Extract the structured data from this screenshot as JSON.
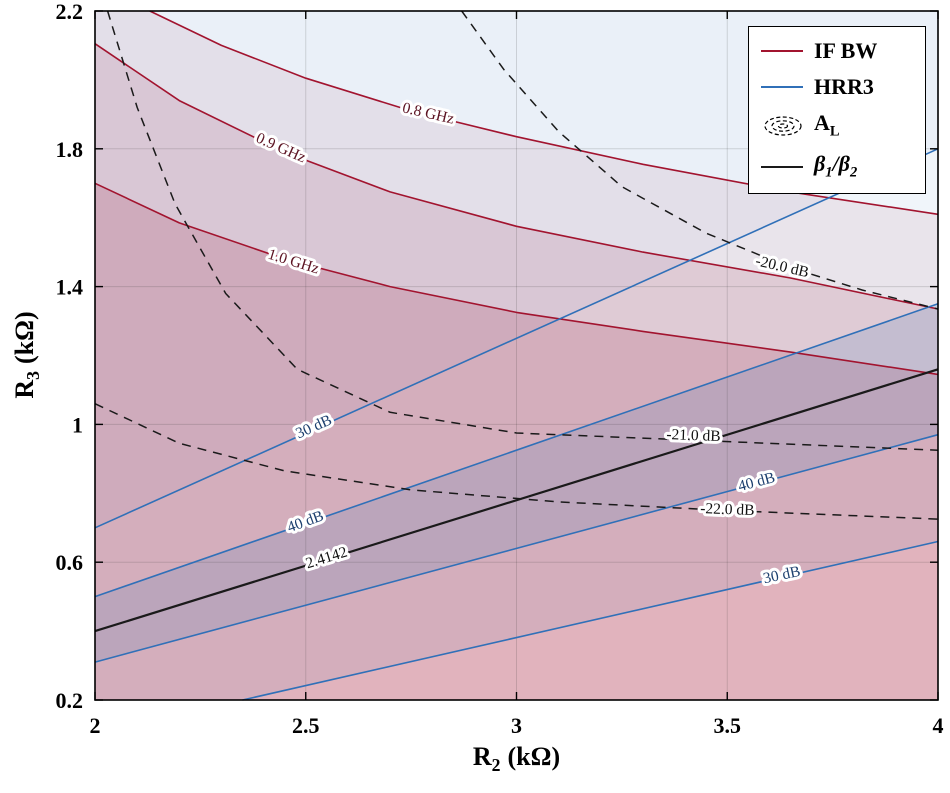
{
  "figure": {
    "background": "#ffffff",
    "xlabel": {
      "main": "R",
      "sub": "2",
      "unit": "(kΩ)"
    },
    "ylabel": {
      "main": "R",
      "sub": "3",
      "unit": "(kΩ)"
    }
  },
  "legend": {
    "items": [
      {
        "label": "IF BW"
      },
      {
        "label": "HRR3"
      },
      {
        "main": "A",
        "sub": "L"
      },
      {
        "beta1": "β",
        "sub1": "1",
        "slash": "/",
        "beta2": "β",
        "sub2": "2"
      }
    ]
  },
  "chart_data": {
    "type": "contour",
    "title": "",
    "xlabel": "R2 (kOhm)",
    "ylabel": "R3 (kOhm)",
    "xlim": [
      2,
      4
    ],
    "ylim": [
      0.2,
      2.2
    ],
    "xtick_values": [
      2,
      2.5,
      3,
      3.5,
      4
    ],
    "xtick_labels": [
      "2",
      "2.5",
      "3",
      "3.5",
      "4"
    ],
    "ytick_values": [
      0.2,
      0.6,
      1.0,
      1.4,
      1.8,
      2.2
    ],
    "ytick_labels": [
      "0.2",
      "0.6",
      "1",
      "1.4",
      "1.8",
      "2.2"
    ],
    "grid": true,
    "legend_position": "top-right",
    "colors": {
      "ifbw": "#A2142F",
      "hrr3": "#3070B8",
      "al": "#1a1a1a",
      "beta": "#1a1a1a",
      "grid_line": "rgba(38,38,38,0.16)",
      "axis": "#000000",
      "label_ifbw": "#5c1322",
      "label_hrr3": "#1c3f6e",
      "label_black": "#111111"
    },
    "fills": [
      {
        "name": "below-0.8GHz",
        "color": "#A2142F",
        "alpha": 0.08,
        "points": [
          [
            2.13,
            2.2
          ],
          [
            2.3,
            2.1
          ],
          [
            2.5,
            2.005
          ],
          [
            2.75,
            1.91
          ],
          [
            3.0,
            1.835
          ],
          [
            3.3,
            1.755
          ],
          [
            3.65,
            1.675
          ],
          [
            4.0,
            1.61
          ],
          [
            4,
            0.2
          ],
          [
            2,
            0.2
          ],
          [
            2,
            2.2
          ]
        ]
      },
      {
        "name": "below-0.9GHz",
        "color": "#A2142F",
        "alpha": 0.12,
        "points": [
          [
            2.0,
            2.105
          ],
          [
            2.2,
            1.94
          ],
          [
            2.45,
            1.79
          ],
          [
            2.7,
            1.675
          ],
          [
            3.0,
            1.575
          ],
          [
            3.3,
            1.5
          ],
          [
            3.65,
            1.425
          ],
          [
            4.0,
            1.335
          ],
          [
            4,
            0.2
          ],
          [
            2,
            0.2
          ]
        ]
      },
      {
        "name": "below-1.0GHz",
        "color": "#A2142F",
        "alpha": 0.16,
        "points": [
          [
            2.0,
            1.7
          ],
          [
            2.2,
            1.585
          ],
          [
            2.45,
            1.48
          ],
          [
            2.7,
            1.4
          ],
          [
            3.0,
            1.325
          ],
          [
            3.3,
            1.27
          ],
          [
            3.65,
            1.21
          ],
          [
            4.0,
            1.145
          ],
          [
            4,
            0.2
          ],
          [
            2,
            0.2
          ]
        ]
      },
      {
        "name": "above-30dB-upper",
        "color": "#3070B8",
        "alpha": 0.1,
        "points": [
          [
            2,
            0.7
          ],
          [
            4,
            1.8
          ],
          [
            4,
            2.2
          ],
          [
            2,
            2.2
          ]
        ]
      },
      {
        "name": "band-30dB",
        "color": "#3070B8",
        "alpha": 0.07,
        "points": [
          [
            2,
            0.7
          ],
          [
            4,
            1.8
          ],
          [
            4,
            0.66
          ],
          [
            2.35,
            0.2
          ],
          [
            2,
            0.2
          ]
        ]
      },
      {
        "name": "band-40dB",
        "color": "#3070B8",
        "alpha": 0.15,
        "points": [
          [
            2,
            0.5
          ],
          [
            4,
            1.35
          ],
          [
            4,
            0.97
          ],
          [
            2,
            0.31
          ]
        ]
      }
    ],
    "series": [
      {
        "group": "IF BW",
        "level": "0.8 GHz",
        "color": "#A2142F",
        "width": 1.6,
        "dash": null,
        "points": [
          [
            2.13,
            2.2
          ],
          [
            2.3,
            2.1
          ],
          [
            2.5,
            2.005
          ],
          [
            2.75,
            1.91
          ],
          [
            3.0,
            1.835
          ],
          [
            3.3,
            1.755
          ],
          [
            3.65,
            1.675
          ],
          [
            4.0,
            1.61
          ]
        ]
      },
      {
        "group": "IF BW",
        "level": "0.9 GHz",
        "color": "#A2142F",
        "width": 1.6,
        "dash": null,
        "points": [
          [
            2.0,
            2.105
          ],
          [
            2.2,
            1.94
          ],
          [
            2.45,
            1.79
          ],
          [
            2.7,
            1.675
          ],
          [
            3.0,
            1.575
          ],
          [
            3.3,
            1.5
          ],
          [
            3.65,
            1.425
          ],
          [
            4.0,
            1.335
          ]
        ]
      },
      {
        "group": "IF BW",
        "level": "1.0 GHz",
        "color": "#A2142F",
        "width": 1.6,
        "dash": null,
        "points": [
          [
            2.0,
            1.7
          ],
          [
            2.2,
            1.585
          ],
          [
            2.45,
            1.48
          ],
          [
            2.7,
            1.4
          ],
          [
            3.0,
            1.325
          ],
          [
            3.3,
            1.27
          ],
          [
            3.65,
            1.21
          ],
          [
            4.0,
            1.145
          ]
        ]
      },
      {
        "group": "HRR3",
        "level": "30 dB upper",
        "color": "#3070B8",
        "width": 1.6,
        "dash": null,
        "points": [
          [
            2,
            0.7
          ],
          [
            4,
            1.8
          ]
        ]
      },
      {
        "group": "HRR3",
        "level": "40 dB upper",
        "color": "#3070B8",
        "width": 1.6,
        "dash": null,
        "points": [
          [
            2,
            0.5
          ],
          [
            4,
            1.35
          ]
        ]
      },
      {
        "group": "beta1/beta2",
        "level": "2.4142",
        "color": "#1a1a1a",
        "width": 2.2,
        "dash": null,
        "points": [
          [
            2,
            0.4
          ],
          [
            4,
            1.16
          ]
        ]
      },
      {
        "group": "HRR3",
        "level": "40 dB lower",
        "color": "#3070B8",
        "width": 1.6,
        "dash": null,
        "points": [
          [
            2,
            0.31
          ],
          [
            4,
            0.97
          ]
        ]
      },
      {
        "group": "HRR3",
        "level": "30 dB lower",
        "color": "#3070B8",
        "width": 1.6,
        "dash": null,
        "points": [
          [
            2.35,
            0.2
          ],
          [
            4,
            0.66
          ]
        ]
      },
      {
        "group": "A_L",
        "level": "-20.0 dB",
        "color": "#1a1a1a",
        "width": 1.5,
        "dash": "9 7",
        "points": [
          [
            2.87,
            2.2
          ],
          [
            2.97,
            2.03
          ],
          [
            3.1,
            1.85
          ],
          [
            3.25,
            1.69
          ],
          [
            3.45,
            1.555
          ],
          [
            3.65,
            1.455
          ],
          [
            3.82,
            1.39
          ],
          [
            4.0,
            1.335
          ]
        ]
      },
      {
        "group": "A_L",
        "level": "-21.0 dB",
        "color": "#1a1a1a",
        "width": 1.5,
        "dash": "9 7",
        "points": [
          [
            2.03,
            2.2
          ],
          [
            2.1,
            1.92
          ],
          [
            2.19,
            1.64
          ],
          [
            2.31,
            1.38
          ],
          [
            2.48,
            1.16
          ],
          [
            2.7,
            1.035
          ],
          [
            3.0,
            0.975
          ],
          [
            3.4,
            0.955
          ],
          [
            4.0,
            0.925
          ]
        ]
      },
      {
        "group": "A_L",
        "level": "-22.0 dB",
        "color": "#1a1a1a",
        "width": 1.5,
        "dash": "9 7",
        "points": [
          [
            2.0,
            1.06
          ],
          [
            2.2,
            0.945
          ],
          [
            2.45,
            0.865
          ],
          [
            2.75,
            0.81
          ],
          [
            3.1,
            0.775
          ],
          [
            3.5,
            0.75
          ],
          [
            4.0,
            0.725
          ]
        ]
      }
    ],
    "contour_labels": [
      {
        "text": "0.8 GHz",
        "x": 2.79,
        "y": 1.9,
        "angle": 13,
        "color": "#5c1322"
      },
      {
        "text": "0.9 GHz",
        "x": 2.44,
        "y": 1.8,
        "angle": 24,
        "color": "#5c1322"
      },
      {
        "text": "1.0 GHz",
        "x": 2.47,
        "y": 1.47,
        "angle": 17,
        "color": "#5c1322"
      },
      {
        "text": "30 dB",
        "x": 2.52,
        "y": 0.99,
        "angle": -24,
        "color": "#1c3f6e"
      },
      {
        "text": "40 dB",
        "x": 2.5,
        "y": 0.715,
        "angle": -20,
        "color": "#1c3f6e"
      },
      {
        "text": "2.4142",
        "x": 2.55,
        "y": 0.61,
        "angle": -17,
        "color": "#111111"
      },
      {
        "text": "40 dB",
        "x": 3.57,
        "y": 0.83,
        "angle": -15,
        "color": "#1c3f6e"
      },
      {
        "text": "30 dB",
        "x": 3.63,
        "y": 0.56,
        "angle": -12,
        "color": "#1c3f6e"
      },
      {
        "text": "-20.0 dB",
        "x": 3.63,
        "y": 1.455,
        "angle": 13,
        "color": "#111111"
      },
      {
        "text": "-21.0 dB",
        "x": 3.42,
        "y": 0.965,
        "angle": 2,
        "color": "#111111"
      },
      {
        "text": "-22.0 dB",
        "x": 3.5,
        "y": 0.75,
        "angle": 2,
        "color": "#111111"
      }
    ]
  }
}
